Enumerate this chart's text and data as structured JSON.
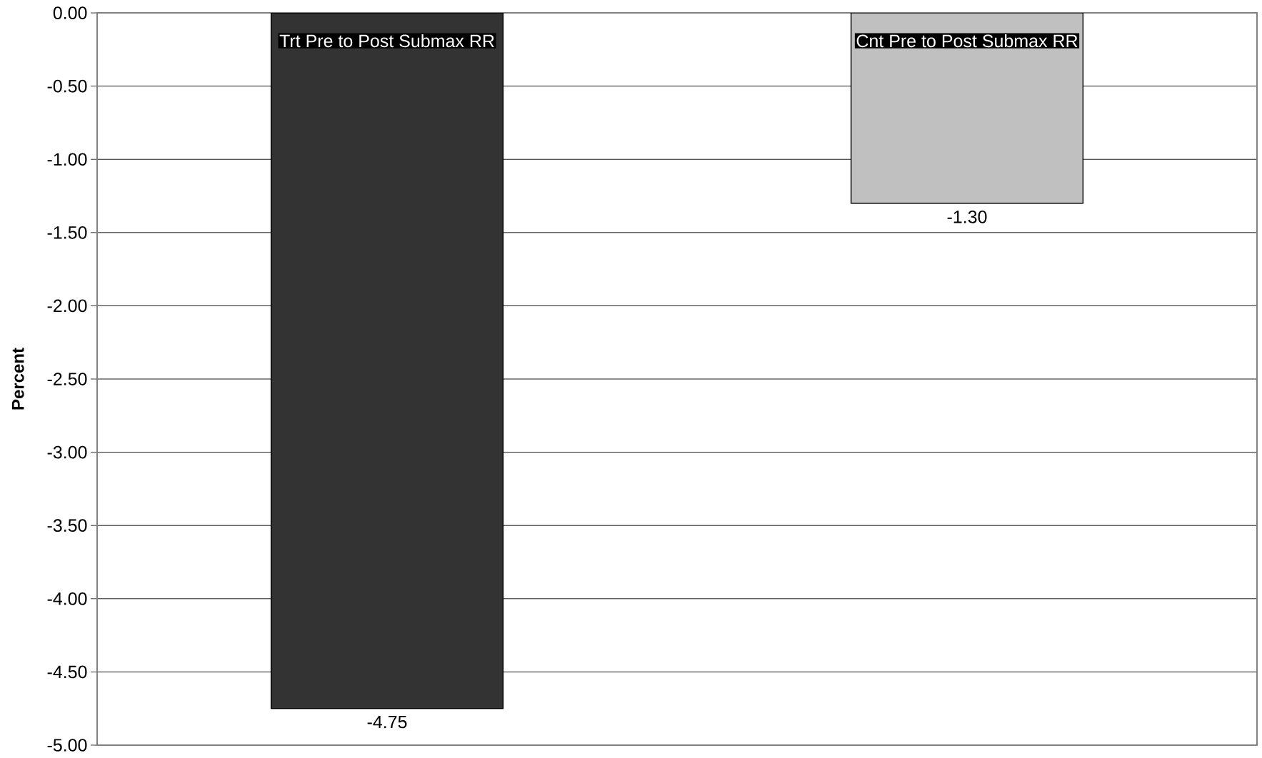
{
  "chart_data": {
    "type": "bar",
    "categories": [
      "Trt Pre to Post Submax RR",
      "Cnt Pre to Post Submax RR"
    ],
    "values": [
      -4.75,
      -1.3
    ],
    "colors": [
      "#333333",
      "#c0c0c0"
    ],
    "value_labels": [
      "-4.75",
      "-1.30"
    ],
    "ylabel": "Percent",
    "ylim": [
      -5,
      0
    ],
    "yticks": [
      {
        "value": -5,
        "label": "-5.00"
      },
      {
        "value": -4.5,
        "label": "-4.50"
      },
      {
        "value": -4,
        "label": "-4.00"
      },
      {
        "value": -3.5,
        "label": "-3.50"
      },
      {
        "value": -3,
        "label": "-3.00"
      },
      {
        "value": -2.5,
        "label": "-2.50"
      },
      {
        "value": -2,
        "label": "-2.00"
      },
      {
        "value": -1.5,
        "label": "-1.50"
      },
      {
        "value": -1,
        "label": "-1.00"
      },
      {
        "value": -0.5,
        "label": "-0.50"
      },
      {
        "value": 0,
        "label": "0.00"
      }
    ],
    "grid": "y"
  }
}
